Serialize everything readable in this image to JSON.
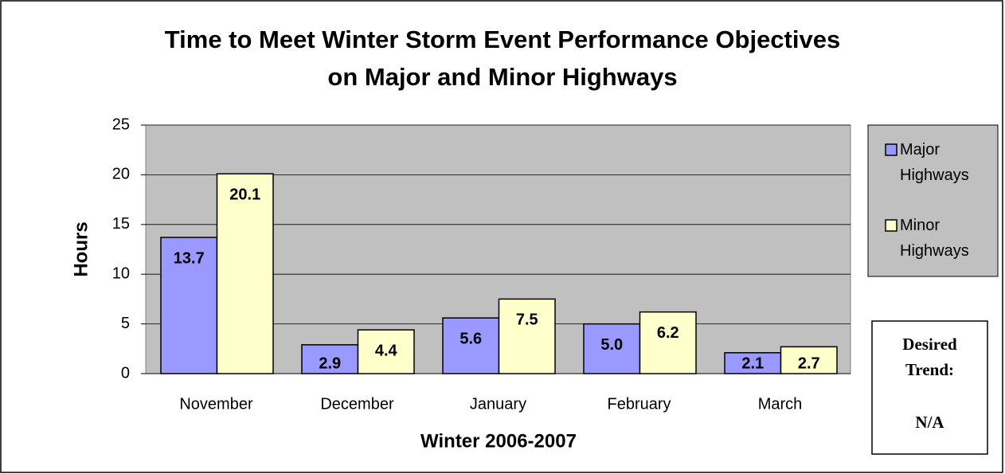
{
  "chart_data": {
    "type": "bar",
    "title": "Time to Meet Winter Storm Event Performance Objectives on Major and Minor Highways",
    "x_label": "Winter 2006-2007",
    "y_label": "Hours",
    "categories": [
      "November",
      "December",
      "January",
      "February",
      "March"
    ],
    "series": [
      {
        "name": "Major Highways",
        "color": "#9999ff",
        "values": [
          13.7,
          2.9,
          5.6,
          5,
          2.1
        ],
        "value_labels": [
          "13.7",
          "2.9",
          "5.6",
          "5.0",
          "2.1"
        ]
      },
      {
        "name": "Minor Highways",
        "color": "#ffffcc",
        "values": [
          20.1,
          4.4,
          7.5,
          6.2,
          2.7
        ],
        "value_labels": [
          "20.1",
          "4.4",
          "7.5",
          "6.2",
          "2.7"
        ]
      }
    ],
    "ylim": [
      0,
      25
    ],
    "yticks": [
      0,
      5,
      10,
      15,
      20,
      25
    ],
    "grid": true,
    "legend": "right",
    "desired_trend": {
      "label": "Desired Trend:",
      "value": "N/A"
    }
  }
}
